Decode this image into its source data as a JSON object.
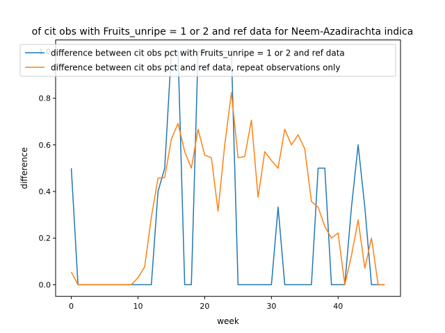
{
  "chart_data": {
    "type": "line",
    "title": "of cit obs with Fruits_unripe = 1 or 2 and ref data for Neem-Azadirachta indica",
    "xlabel": "week",
    "ylabel": "difference",
    "xlim": [
      -2.35,
      49.35
    ],
    "ylim": [
      -0.05,
      1.05
    ],
    "xticks": [
      0,
      10,
      20,
      30,
      40
    ],
    "yticks": [
      0.0,
      0.2,
      0.4,
      0.6,
      0.8,
      1.0
    ],
    "xtick_labels": [
      "0",
      "10",
      "20",
      "30",
      "40"
    ],
    "ytick_labels": [
      "0.0",
      "0.2",
      "0.4",
      "0.6",
      "0.8",
      "1.0"
    ],
    "grid": false,
    "legend_position": "top",
    "series": [
      {
        "name": "difference between cit obs pct with Fruits_unripe = 1 or 2 and ref data",
        "color": "#1f77b4",
        "x": [
          0,
          1,
          2,
          3,
          4,
          5,
          6,
          7,
          8,
          9,
          10,
          11,
          12,
          13,
          14,
          15,
          16,
          17,
          18,
          19,
          20,
          21,
          22,
          23,
          24,
          25,
          26,
          27,
          28,
          29,
          30,
          31,
          32,
          33,
          34,
          35,
          36,
          37,
          38,
          39,
          40,
          41,
          42,
          43,
          44,
          45,
          46,
          47
        ],
        "y": [
          0.5,
          0,
          0,
          0,
          0,
          0,
          0,
          0,
          0,
          0,
          0,
          0,
          0,
          0.4,
          0.5,
          1.0,
          1.0,
          0,
          0,
          1.0,
          1.0,
          1.0,
          1.0,
          1.0,
          1.0,
          0,
          0,
          0,
          0,
          0,
          0,
          0.333,
          0,
          0,
          0,
          0,
          0,
          0.5,
          0.5,
          0,
          0,
          0,
          0.333,
          0.6,
          0.333,
          0,
          0,
          0
        ]
      },
      {
        "name": "difference between cit obs pct and ref data, repeat observations only",
        "color": "#ff7f0e",
        "x": [
          0,
          1,
          2,
          3,
          4,
          5,
          6,
          7,
          8,
          9,
          10,
          11,
          12,
          13,
          14,
          15,
          16,
          17,
          18,
          19,
          20,
          21,
          22,
          23,
          24,
          25,
          26,
          27,
          28,
          29,
          30,
          31,
          32,
          33,
          34,
          35,
          36,
          37,
          38,
          39,
          40,
          41,
          42,
          43,
          44,
          45,
          46,
          47
        ],
        "y": [
          0.055,
          0,
          0,
          0,
          0,
          0,
          0,
          0,
          0,
          0,
          0.03,
          0.077,
          0.29,
          0.457,
          0.46,
          0.625,
          0.692,
          0.571,
          0.5,
          0.667,
          0.556,
          0.545,
          0.316,
          0.6,
          0.824,
          0.545,
          0.55,
          0.706,
          0.375,
          0.571,
          0.533,
          0.5,
          0.667,
          0.6,
          0.643,
          0.583,
          0.357,
          0.333,
          0.25,
          0.2,
          0.222,
          0,
          0.125,
          0.278,
          0.071,
          0.2,
          0,
          0
        ]
      }
    ]
  }
}
